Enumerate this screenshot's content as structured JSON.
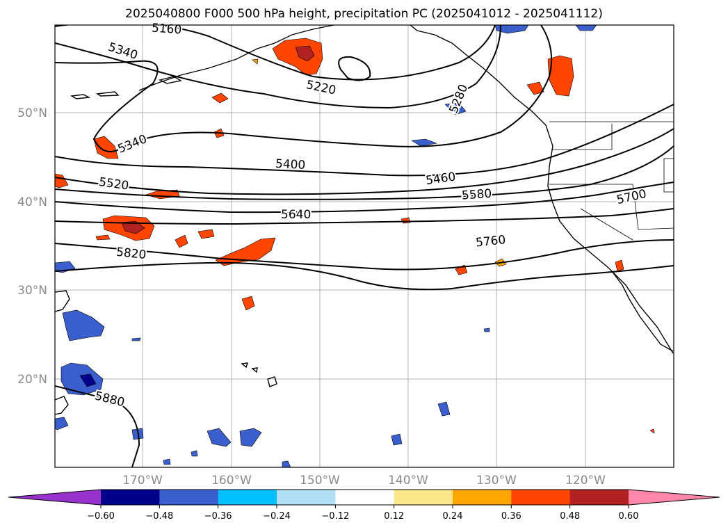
{
  "title": "2025040800 F000 500 hPa height, precipitation PC (2025041012 - 2025041112)",
  "lat_labels": [
    "50°N",
    "40°N",
    "30°N",
    "20°N"
  ],
  "lon_labels": [
    "170°W",
    "160°W",
    "150°W",
    "140°W",
    "130°W",
    "120°W"
  ],
  "contour_labels": [
    "5160",
    "5340",
    "5220",
    "5280",
    "5340",
    "5400",
    "5460",
    "5520",
    "5580",
    "5700",
    "5640",
    "5760",
    "5820",
    "5880"
  ],
  "colorbar": {
    "ticks": [
      "−0.60",
      "−0.48",
      "−0.36",
      "−0.24",
      "−0.12",
      "0.12",
      "0.24",
      "0.36",
      "0.48",
      "0.60"
    ],
    "colors": [
      "#9932cc",
      "#00008b",
      "#3a5fcd",
      "#00bfff",
      "#b0e0f5",
      "#ffffff",
      "#fbe78a",
      "#ffa500",
      "#ff4500",
      "#b22222",
      "#ff88aa"
    ]
  }
}
